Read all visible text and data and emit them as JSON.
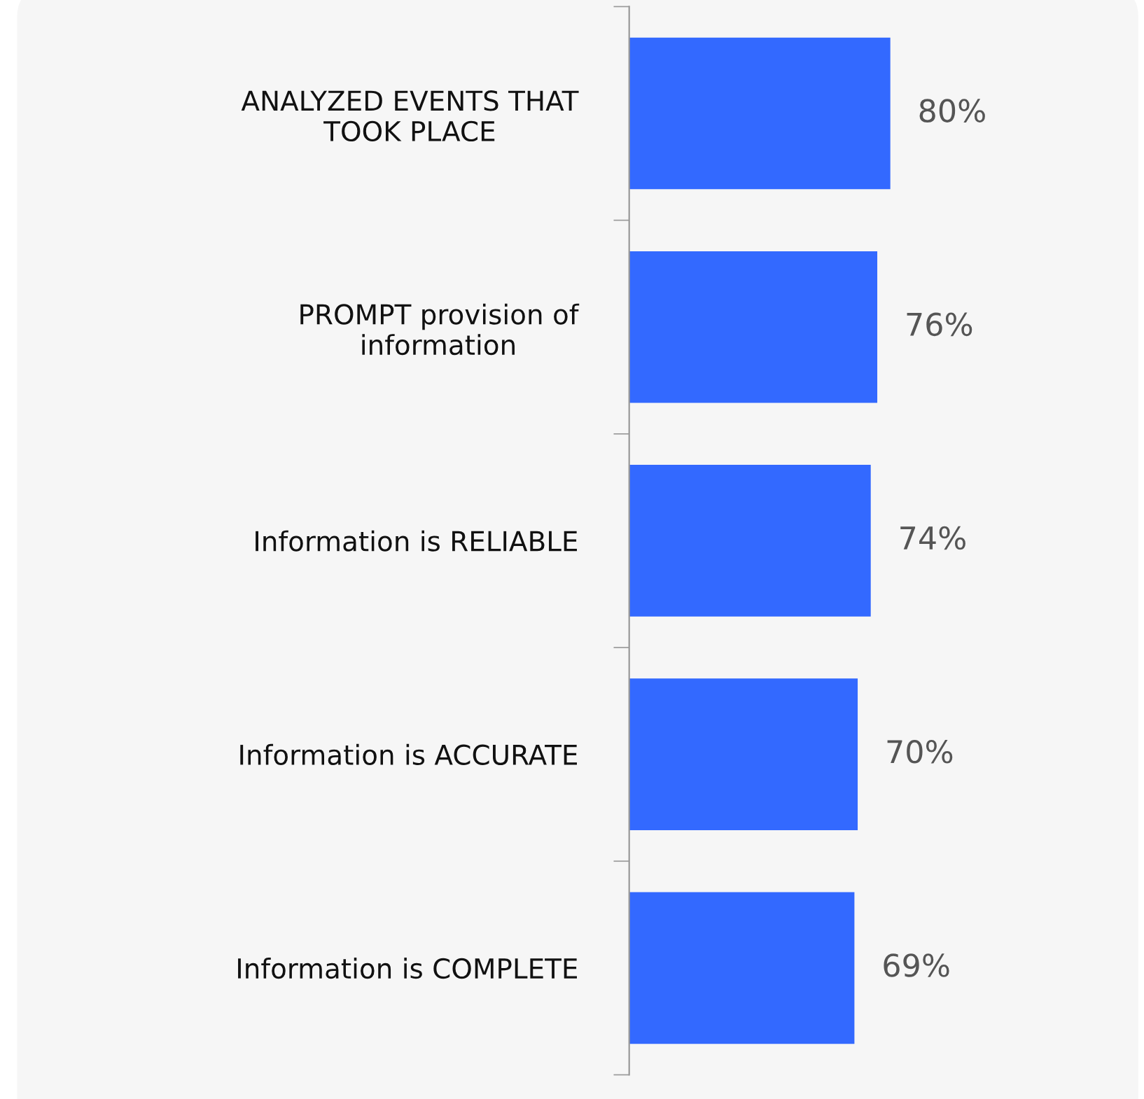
{
  "chart_data": {
    "type": "bar",
    "orientation": "horizontal",
    "categories": [
      "ANALYZED EVENTS THAT\nTOOK PLACE",
      "PROMPT provision of\ninformation",
      "Information is RELIABLE",
      "Information is ACCURATE",
      "Information is COMPLETE"
    ],
    "values": [
      80,
      76,
      74,
      70,
      69
    ],
    "value_labels": [
      "80%",
      "76%",
      "74%",
      "70%",
      "69%"
    ],
    "color": "#3369ff",
    "tick_labels": "y",
    "grid": false,
    "legend": false
  }
}
